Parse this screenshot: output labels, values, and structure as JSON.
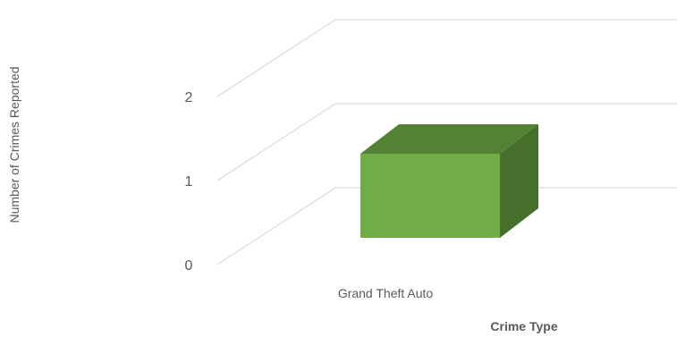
{
  "chart_data": {
    "type": "bar",
    "style": "3d-clustered-column",
    "categories": [
      "Grand Theft Auto"
    ],
    "series": [
      {
        "values": [
          1
        ]
      }
    ],
    "xlabel": "Crime Type",
    "ylabel": "Number of Crimes Reported",
    "ylim": [
      0,
      3
    ],
    "yticks": [
      "0",
      "1",
      "2"
    ],
    "grid": true,
    "legend": "none",
    "colors": {
      "bar_front": "#70ad47",
      "bar_top": "#548235",
      "bar_side": "#466f2c",
      "gridline": "#d9d9d9",
      "text": "#595959"
    }
  }
}
